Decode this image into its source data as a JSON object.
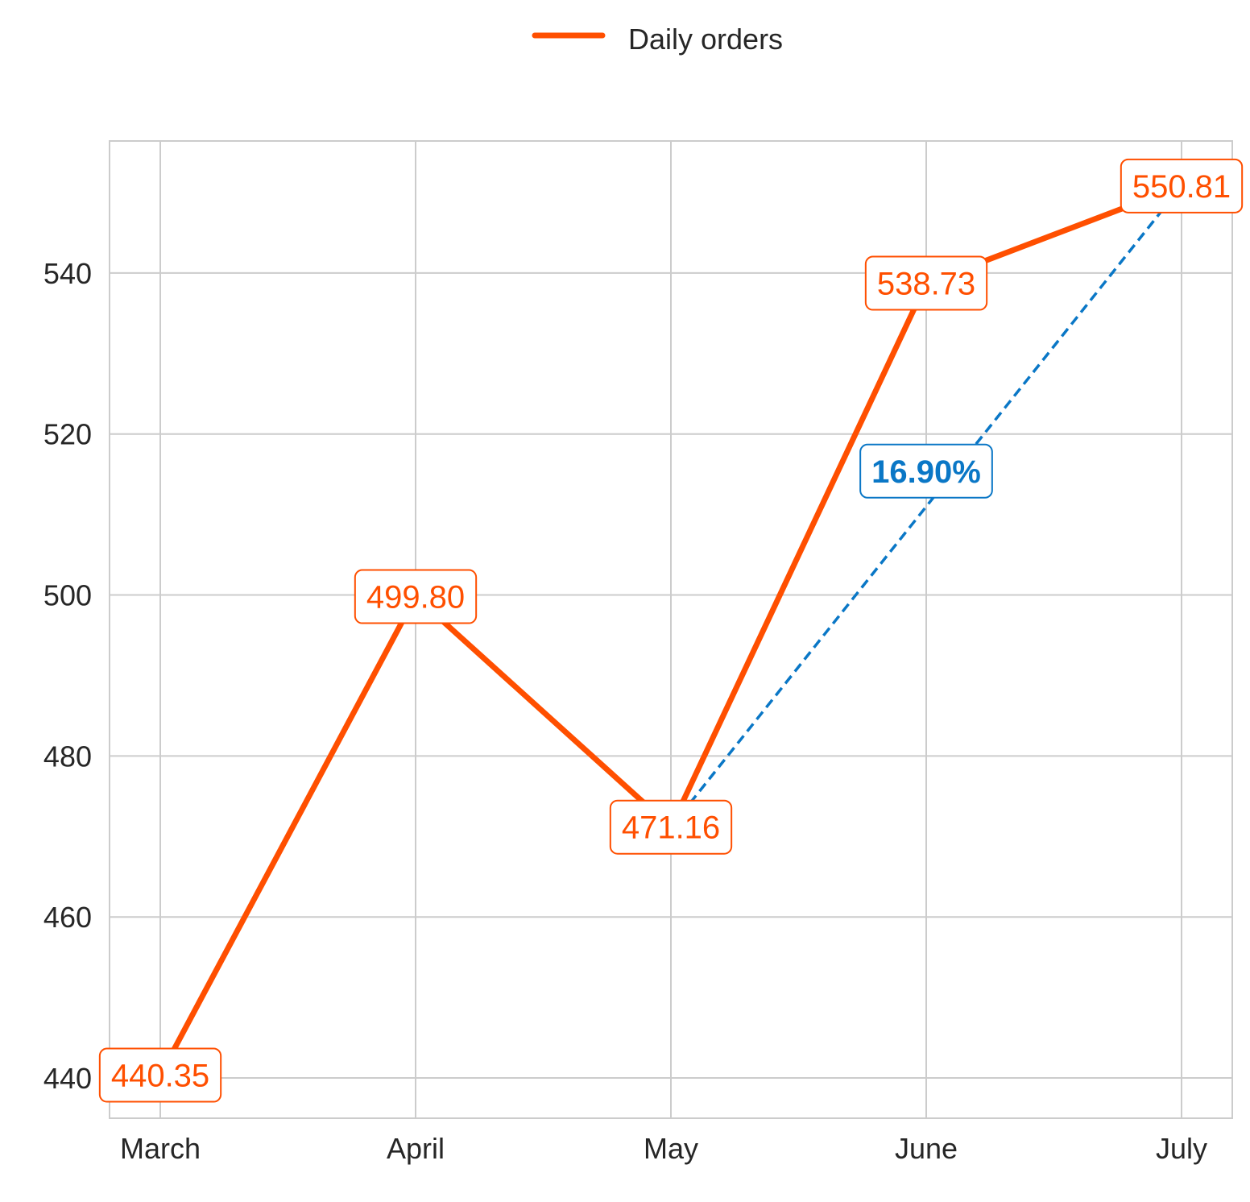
{
  "chart_data": {
    "type": "line",
    "categories": [
      "March",
      "April",
      "May",
      "June",
      "July"
    ],
    "series": [
      {
        "name": "Daily orders",
        "values": [
          440.35,
          499.8,
          471.16,
          538.73,
          550.81
        ],
        "labels": [
          "440.35",
          "499.80",
          "471.16",
          "538.73",
          "550.81"
        ],
        "color": "#FF4F00"
      }
    ],
    "change_annotation": {
      "from_category": "May",
      "to_category": "July",
      "from_value": 471.16,
      "to_value": 550.81,
      "label": "16.90%",
      "color": "#0A77C6",
      "line_style": "dashed"
    },
    "ylim": [
      435,
      556.4
    ],
    "yticks": [
      440,
      460,
      480,
      500,
      520,
      540
    ],
    "ytick_labels": [
      "440",
      "460",
      "480",
      "500",
      "520",
      "540"
    ],
    "grid": true,
    "legend_position": "top-center",
    "title": "",
    "xlabel": "",
    "ylabel": ""
  },
  "colors": {
    "grid": "#cccccc",
    "axes": "#cccccc",
    "text": "#262626"
  }
}
